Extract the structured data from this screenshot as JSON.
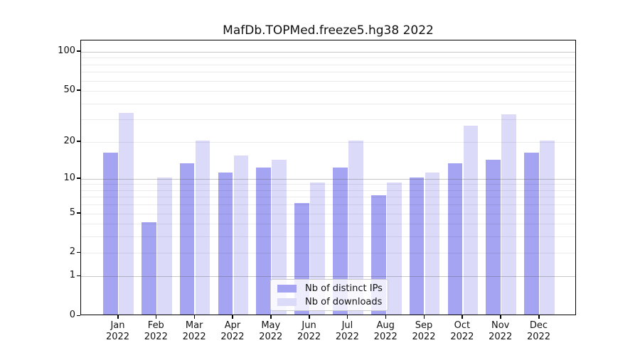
{
  "title": "MafDb.TOPMed.freeze5.hg38 2022",
  "chart_data": {
    "type": "bar",
    "title": "MafDb.TOPMed.freeze5.hg38 2022",
    "categories": [
      "Jan",
      "Feb",
      "Mar",
      "Apr",
      "May",
      "Jun",
      "Jul",
      "Aug",
      "Sep",
      "Oct",
      "Nov",
      "Dec"
    ],
    "xtick_year": "2022",
    "series": [
      {
        "name": "Nb of distinct IPs",
        "color": "#a4a4f2",
        "values": [
          16,
          4,
          13,
          11,
          12,
          6,
          12,
          7,
          10,
          13,
          14,
          16
        ]
      },
      {
        "name": "Nb of downloads",
        "color": "#dbdbf9",
        "values": [
          33,
          10,
          20,
          15,
          14,
          9,
          20,
          9,
          11,
          26,
          32,
          20
        ]
      }
    ],
    "xlabel": "",
    "ylabel": "",
    "yscale": "log1p",
    "ylim": [
      0,
      122
    ],
    "yticks": [
      100,
      50,
      20,
      10,
      5,
      2,
      1,
      0
    ],
    "minor_gridlines": [
      2,
      3,
      4,
      5,
      6,
      7,
      8,
      9,
      20,
      30,
      40,
      50,
      60,
      70,
      80,
      90
    ],
    "major_gridlines": [
      1,
      10,
      100
    ],
    "grid": true,
    "legend_position": "lower center"
  }
}
